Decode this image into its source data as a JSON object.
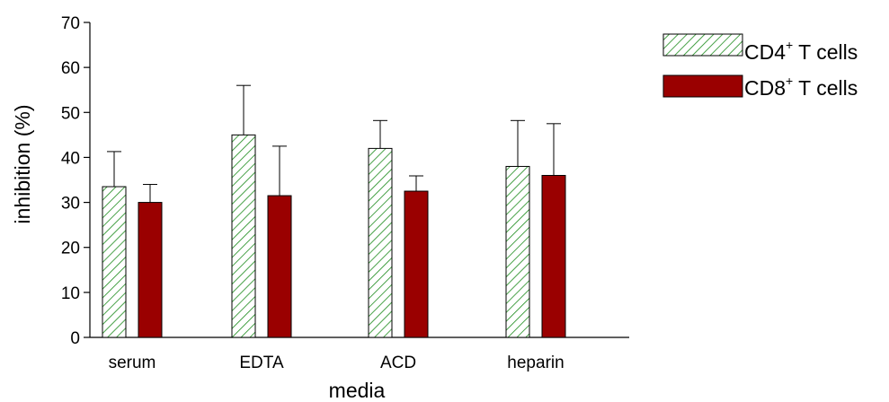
{
  "chart_data": {
    "type": "bar",
    "title": "",
    "xlabel": "media",
    "ylabel": "inhibition (%)",
    "ylim": [
      0,
      70
    ],
    "yticks": [
      0,
      10,
      20,
      30,
      40,
      50,
      60,
      70
    ],
    "grid": false,
    "legend_position": "top-right",
    "categories": [
      "serum",
      "EDTA",
      "ACD",
      "heparin"
    ],
    "series": [
      {
        "name": "CD4+ T cells",
        "name_main": "CD4",
        "name_sup": "+",
        "name_rest": " T cells",
        "style": "hatched",
        "color": "#1a8a1a",
        "values": [
          33.5,
          45,
          42,
          38
        ],
        "errors": [
          7.8,
          11,
          6.2,
          10.2
        ]
      },
      {
        "name": "CD8+ T cells",
        "name_main": "CD8",
        "name_sup": "+",
        "name_rest": " T cells",
        "style": "solid",
        "color": "#9a0000",
        "values": [
          30,
          31.5,
          32.5,
          36
        ],
        "errors": [
          4,
          11,
          3.4,
          11.5
        ]
      }
    ]
  }
}
